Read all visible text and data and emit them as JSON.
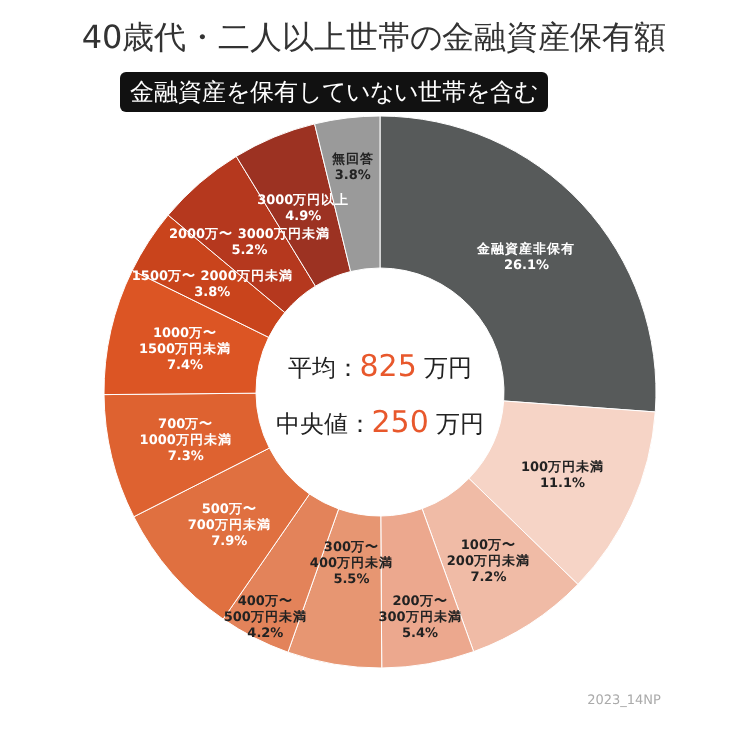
{
  "chart_data": {
    "type": "donut",
    "title": "40歳代・二人以上世帯の金融資産保有額",
    "subtitle": "金融資産を保有していない世帯を含む",
    "categories": [
      "金融資産非保有",
      "100万円未満",
      "100万〜\n200万円未満",
      "200万〜\n300万円未満",
      "300万〜\n400万円未満",
      "400万〜\n500万円未満",
      "500万〜\n700万円未満",
      "700万〜\n1000万円未満",
      "1000万〜\n1500万円未満",
      "1500万〜 2000万円未満",
      "2000万〜 3000万円未満",
      "3000万円以上",
      "無回答"
    ],
    "values": [
      26.1,
      11.1,
      7.2,
      5.4,
      5.5,
      4.2,
      7.9,
      7.3,
      7.4,
      3.8,
      5.2,
      4.9,
      3.8
    ],
    "colors": [
      "#575a5a",
      "#f6d4c6",
      "#f0bba6",
      "#eca88e",
      "#e79672",
      "#e3835a",
      "#e07040",
      "#de6230",
      "#dc5524",
      "#c9441c",
      "#b5381e",
      "#9c3222",
      "#9a9a9a"
    ],
    "value_labels": [
      "26.1%",
      "11.1%",
      "7.2%",
      "5.4%",
      "5.5%",
      "4.2%",
      "7.9%",
      "7.3%",
      "7.4%",
      "3.8%",
      "5.2%",
      "4.9%",
      "3.8%"
    ],
    "annotations": [
      "平均：825 万円",
      "中央値：250 万円",
      "2023_14NP"
    ]
  }
}
